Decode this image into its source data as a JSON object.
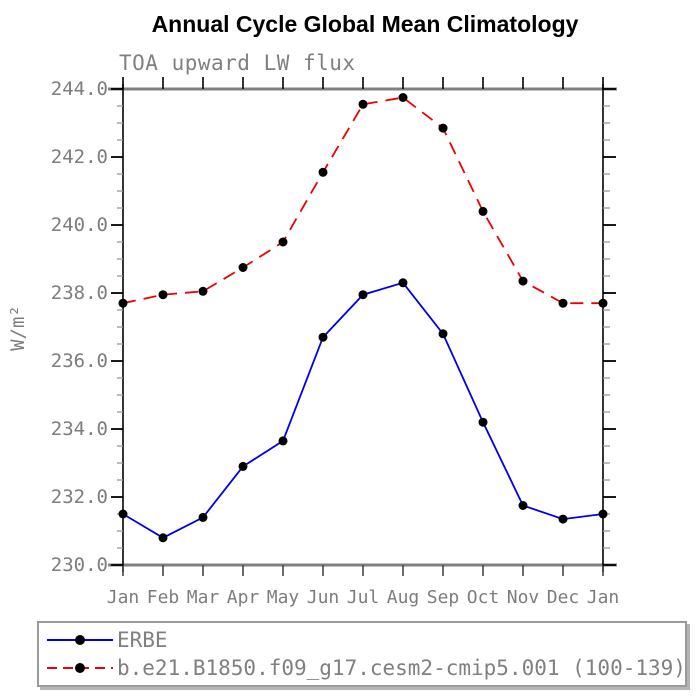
{
  "title": "Annual Cycle Global Mean Climatology",
  "subtitle": "TOA upward LW flux",
  "ylabel": "W/m²",
  "chart_data": {
    "type": "line",
    "title": "Annual Cycle Global Mean Climatology",
    "subtitle": "TOA upward LW flux",
    "ylabel": "W/m²",
    "x_categories": [
      "Jan",
      "Feb",
      "Mar",
      "Apr",
      "May",
      "Jun",
      "Jul",
      "Aug",
      "Sep",
      "Oct",
      "Nov",
      "Dec",
      "Jan"
    ],
    "series": [
      {
        "name": "ERBE",
        "color": "#0000ee",
        "line_style": "solid",
        "marker": "filled-black-circle",
        "values": [
          231.5,
          230.8,
          231.4,
          232.9,
          233.65,
          236.7,
          237.95,
          238.3,
          236.8,
          234.2,
          231.75,
          231.35,
          231.5
        ]
      },
      {
        "name": "b.e21.B1850.f09_g17.cesm2-cmip5.001 (100-139)",
        "color": "#ee0000",
        "line_style": "dashed",
        "marker": "filled-black-circle",
        "values": [
          237.7,
          237.95,
          238.05,
          238.75,
          239.5,
          241.55,
          243.55,
          243.75,
          242.85,
          240.4,
          238.35,
          237.7,
          237.7
        ]
      }
    ],
    "ylim": [
      230.0,
      244.0
    ],
    "ytick_labels": [
      "230.0",
      "232.0",
      "234.0",
      "236.0",
      "238.0",
      "240.0",
      "242.0",
      "244.0"
    ],
    "ytick_interval": 2.0,
    "yminor_interval": 0.5,
    "grid": false,
    "legend_position": "bottom-left-box"
  },
  "colors": {
    "axis_rail": "#808080",
    "axis_spine": "#000000",
    "minor_tick": "#999999",
    "text_gray": "#7d7d7d",
    "marker": "#000000"
  }
}
